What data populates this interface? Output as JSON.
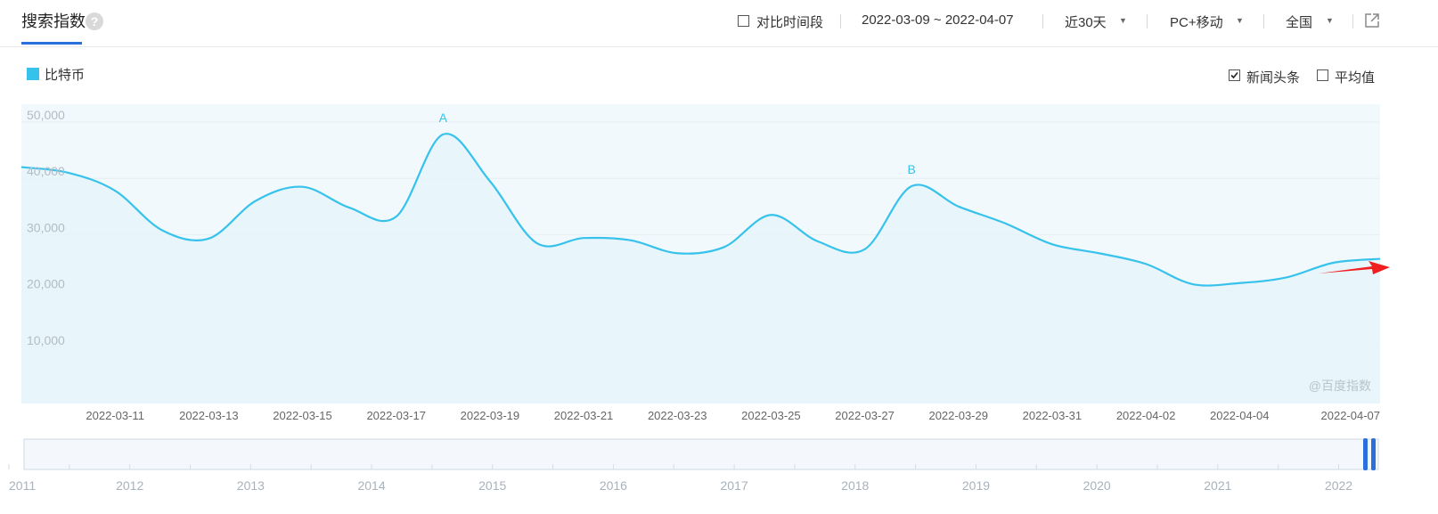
{
  "header": {
    "title": "搜索指数",
    "help_icon": "?",
    "compare_label": "对比时间段",
    "date_range": "2022-03-09 ~ 2022-04-07",
    "period": "近30天",
    "device": "PC+移动",
    "region": "全国",
    "export_icon": "external-link-icon"
  },
  "options": {
    "news_label": "新闻头条",
    "news_checked": true,
    "avg_label": "平均值",
    "avg_checked": false
  },
  "watermark": "@百度指数",
  "colors": {
    "line": "#37c2ec",
    "area": "#f1f9fc",
    "accent": "#2a6fdb",
    "arrow": "#f01e1e"
  },
  "chart_data": {
    "type": "area",
    "ylim": [
      0,
      50000
    ],
    "y_ticks": [
      "10,000",
      "20,000",
      "30,000",
      "40,000",
      "50,000"
    ],
    "y_tick_values": [
      10000,
      20000,
      30000,
      40000,
      50000
    ],
    "x_tick_labels": [
      "2022-03-11",
      "2022-03-13",
      "2022-03-15",
      "2022-03-17",
      "2022-03-19",
      "2022-03-21",
      "2022-03-23",
      "2022-03-25",
      "2022-03-27",
      "2022-03-29",
      "2022-03-31",
      "2022-04-02",
      "2022-04-04",
      "2022-04-07"
    ],
    "x_tick_dates": [
      "2022-03-11",
      "2022-03-13",
      "2022-03-15",
      "2022-03-17",
      "2022-03-19",
      "2022-03-21",
      "2022-03-23",
      "2022-03-25",
      "2022-03-27",
      "2022-03-29",
      "2022-03-31",
      "2022-04-02",
      "2022-04-04",
      "2022-04-07"
    ],
    "x": [
      "2022-03-09",
      "2022-03-10",
      "2022-03-11",
      "2022-03-12",
      "2022-03-13",
      "2022-03-14",
      "2022-03-15",
      "2022-03-16",
      "2022-03-17",
      "2022-03-18",
      "2022-03-19",
      "2022-03-20",
      "2022-03-21",
      "2022-03-22",
      "2022-03-23",
      "2022-03-24",
      "2022-03-25",
      "2022-03-26",
      "2022-03-27",
      "2022-03-28",
      "2022-03-29",
      "2022-03-30",
      "2022-03-31",
      "2022-04-01",
      "2022-04-02",
      "2022-04-03",
      "2022-04-04",
      "2022-04-05",
      "2022-04-06",
      "2022-04-07"
    ],
    "series": [
      {
        "name": "比特币",
        "values": [
          42000,
          41000,
          37800,
          30800,
          29300,
          36000,
          38500,
          34800,
          33200,
          47800,
          39500,
          28500,
          29400,
          29000,
          26700,
          27800,
          33500,
          28800,
          27400,
          38600,
          35000,
          32000,
          28300,
          26700,
          24800,
          21200,
          21400,
          22400,
          25000,
          25700
        ]
      }
    ],
    "annotations": [
      {
        "label": "A",
        "x": "2022-03-18"
      },
      {
        "label": "B",
        "x": "2022-03-28"
      }
    ],
    "legend": "top-left",
    "grid": true
  },
  "overview": {
    "year_labels": [
      "2011",
      "2012",
      "2013",
      "2014",
      "2015",
      "2016",
      "2017",
      "2018",
      "2019",
      "2020",
      "2021",
      "2022"
    ],
    "years": [
      2011,
      2012,
      2013,
      2014,
      2015,
      2016,
      2017,
      2018,
      2019,
      2020,
      2021,
      2022
    ],
    "handle_icon": "range-handle-icon"
  }
}
